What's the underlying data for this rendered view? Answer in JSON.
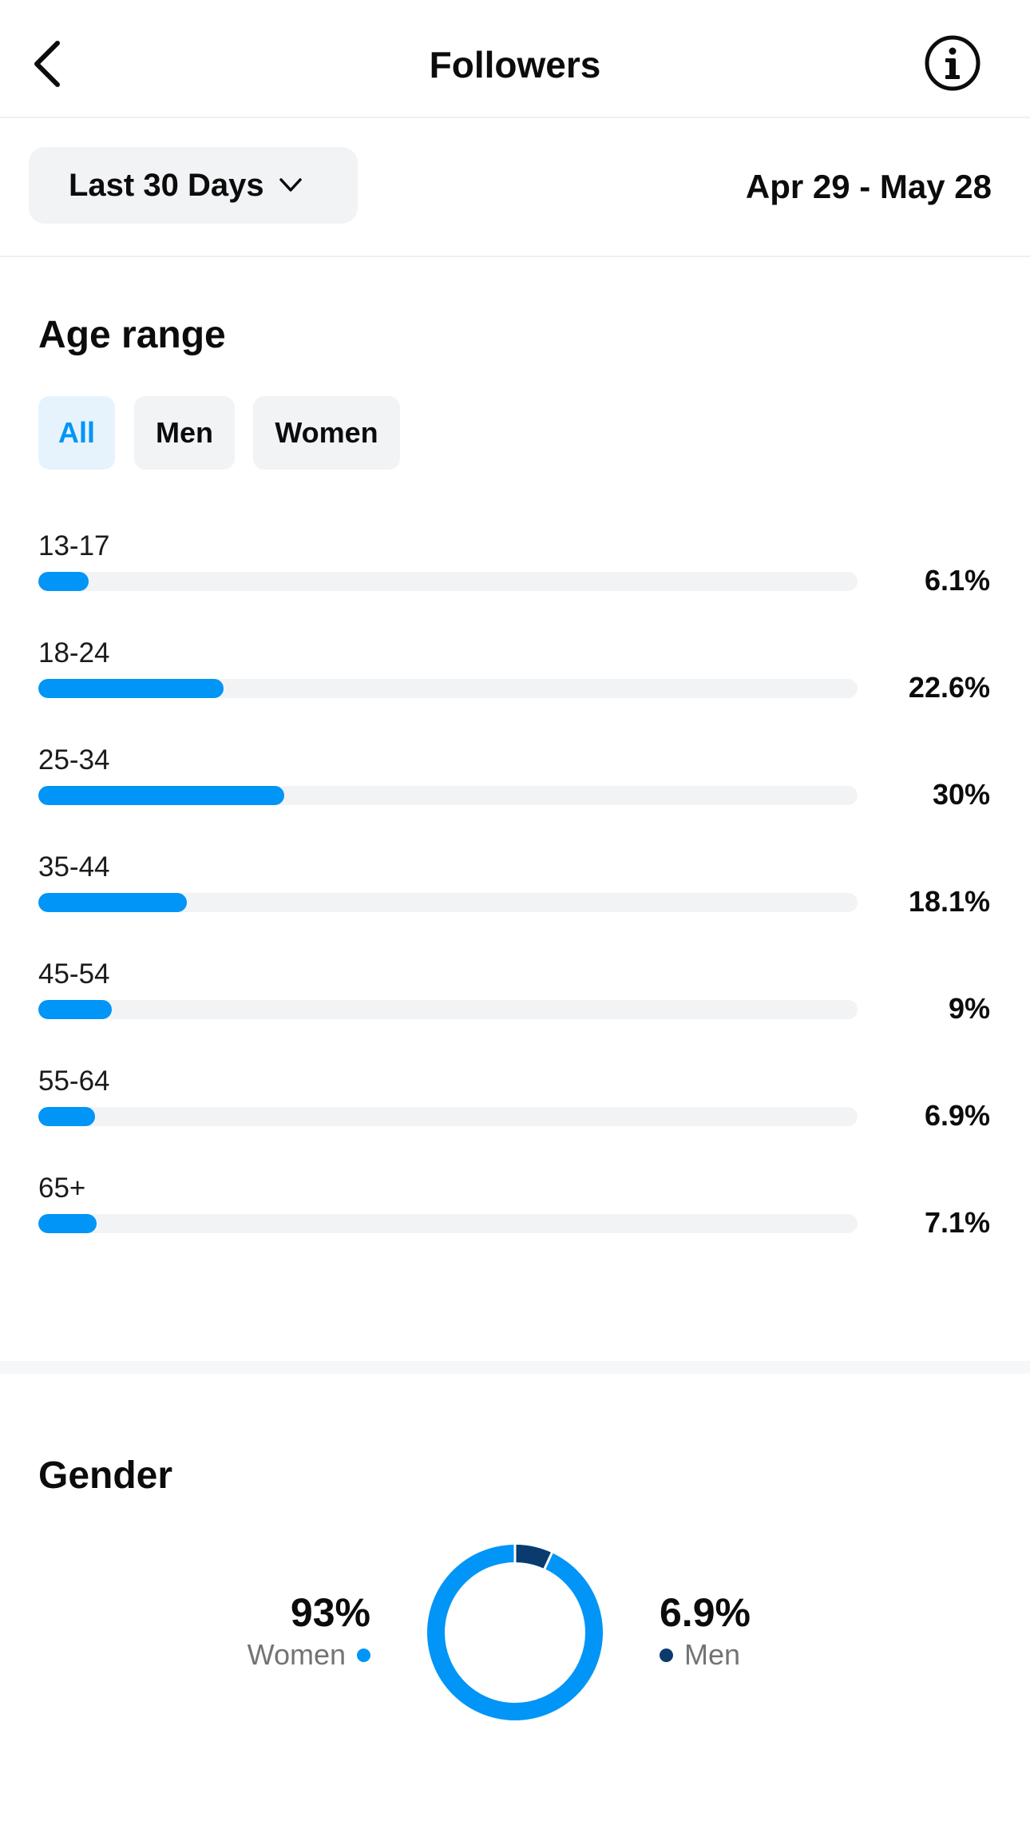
{
  "header": {
    "title": "Followers",
    "back_icon": "chevron-left-icon",
    "info_icon": "info-circle-icon"
  },
  "filter": {
    "range_label": "Last 30 Days",
    "range_icon": "chevron-down-icon",
    "date_range": "Apr 29 - May 28"
  },
  "age_section": {
    "title": "Age range",
    "tabs": [
      {
        "label": "All",
        "active": true
      },
      {
        "label": "Men",
        "active": false
      },
      {
        "label": "Women",
        "active": false
      }
    ],
    "rows": [
      {
        "label": "13-17",
        "pct_text": "6.1%",
        "value": 6.1
      },
      {
        "label": "18-24",
        "pct_text": "22.6%",
        "value": 22.6
      },
      {
        "label": "25-34",
        "pct_text": "30%",
        "value": 30
      },
      {
        "label": "35-44",
        "pct_text": "18.1%",
        "value": 18.1
      },
      {
        "label": "45-54",
        "pct_text": "9%",
        "value": 9
      },
      {
        "label": "55-64",
        "pct_text": "6.9%",
        "value": 6.9
      },
      {
        "label": "65+",
        "pct_text": "7.1%",
        "value": 7.1
      }
    ]
  },
  "gender_section": {
    "title": "Gender",
    "women": {
      "value_text": "93%",
      "label": "Women",
      "value": 93
    },
    "men": {
      "value_text": "6.9%",
      "label": "Men",
      "value": 6.9
    }
  },
  "colors": {
    "accent": "#0095f6",
    "men": "#0b3a6e",
    "track": "#f2f3f5"
  },
  "chart_data": [
    {
      "type": "bar",
      "title": "Age range",
      "categories": [
        "13-17",
        "18-24",
        "25-34",
        "35-44",
        "45-54",
        "55-64",
        "65+"
      ],
      "values": [
        6.1,
        22.6,
        30,
        18.1,
        9,
        6.9,
        7.1
      ],
      "orientation": "horizontal",
      "ylim": [
        0,
        100
      ]
    },
    {
      "type": "pie",
      "title": "Gender",
      "categories": [
        "Women",
        "Men"
      ],
      "values": [
        93,
        6.9
      ],
      "donut": true
    }
  ]
}
